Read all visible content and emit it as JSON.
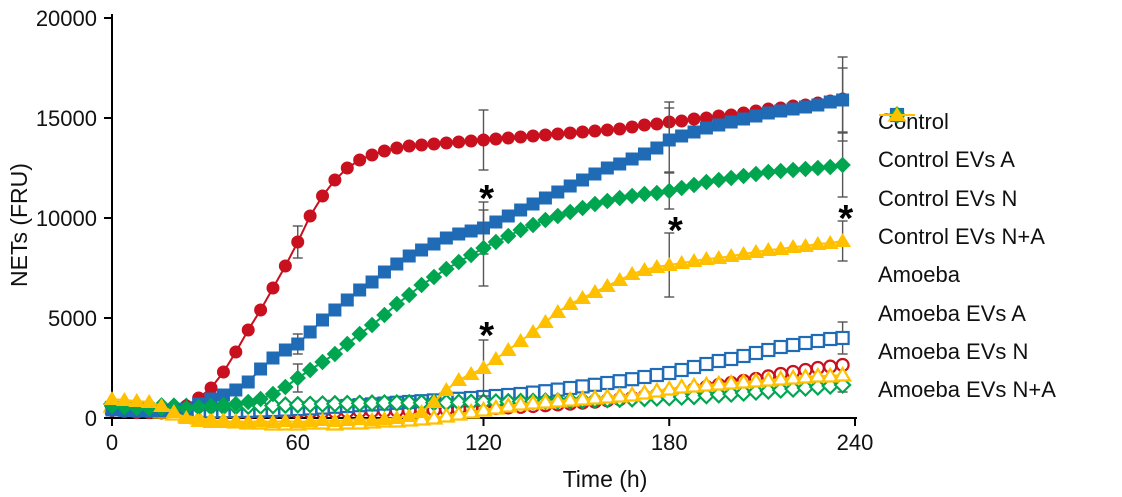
{
  "chart_data": {
    "type": "line",
    "title": "",
    "xlabel": "Time (h)",
    "ylabel": "NETs (FRU)",
    "xlim": [
      0,
      240
    ],
    "ylim": [
      0,
      20000
    ],
    "x_ticks": [
      0,
      60,
      120,
      180,
      240
    ],
    "y_ticks": [
      0,
      5000,
      10000,
      15000,
      20000
    ],
    "grid": false,
    "legend_position": "right",
    "annotation_symbol": "*",
    "x": [
      0,
      4,
      8,
      12,
      16,
      20,
      24,
      28,
      32,
      36,
      40,
      44,
      48,
      52,
      56,
      60,
      64,
      68,
      72,
      76,
      80,
      84,
      88,
      92,
      96,
      100,
      104,
      108,
      112,
      116,
      120,
      124,
      128,
      132,
      136,
      140,
      144,
      148,
      152,
      156,
      160,
      164,
      168,
      172,
      176,
      180,
      184,
      188,
      192,
      196,
      200,
      204,
      208,
      212,
      216,
      220,
      224,
      228,
      232,
      236
    ],
    "series": [
      {
        "name": "Control",
        "marker": "circle",
        "fill": "open",
        "color": "#C8101E",
        "values": [
          400,
          350,
          300,
          300,
          280,
          260,
          250,
          240,
          230,
          230,
          240,
          250,
          260,
          270,
          280,
          290,
          300,
          310,
          320,
          330,
          340,
          350,
          360,
          370,
          380,
          390,
          400,
          420,
          440,
          460,
          480,
          500,
          530,
          560,
          600,
          640,
          680,
          720,
          770,
          820,
          880,
          940,
          1010,
          1080,
          1160,
          1250,
          1340,
          1440,
          1550,
          1650,
          1750,
          1850,
          1950,
          2080,
          2200,
          2300,
          2400,
          2500,
          2570,
          2650
        ],
        "error_bars": []
      },
      {
        "name": "Control EVs A",
        "marker": "square",
        "fill": "open",
        "color": "#1F6BB5",
        "values": [
          500,
          450,
          400,
          380,
          360,
          350,
          340,
          330,
          330,
          340,
          350,
          360,
          380,
          400,
          420,
          450,
          480,
          520,
          560,
          600,
          640,
          680,
          720,
          760,
          800,
          840,
          880,
          920,
          960,
          1000,
          1050,
          1100,
          1150,
          1200,
          1270,
          1340,
          1420,
          1500,
          1580,
          1660,
          1750,
          1840,
          1940,
          2050,
          2150,
          2250,
          2400,
          2550,
          2700,
          2850,
          2950,
          3100,
          3250,
          3400,
          3550,
          3650,
          3750,
          3850,
          3950,
          4000
        ],
        "error_bars": [
          {
            "t": 236,
            "err": 800
          }
        ]
      },
      {
        "name": "Control EVs N",
        "marker": "diamond",
        "fill": "open",
        "color": "#00A550",
        "values": [
          700,
          650,
          620,
          600,
          590,
          580,
          570,
          560,
          560,
          570,
          580,
          590,
          600,
          620,
          640,
          660,
          680,
          700,
          710,
          720,
          730,
          740,
          750,
          750,
          760,
          760,
          770,
          770,
          780,
          780,
          790,
          800,
          810,
          820,
          830,
          840,
          850,
          860,
          880,
          900,
          920,
          940,
          960,
          980,
          1000,
          1020,
          1050,
          1080,
          1120,
          1160,
          1200,
          1250,
          1300,
          1350,
          1400,
          1450,
          1500,
          1550,
          1600,
          1650
        ],
        "error_bars": [
          {
            "t": 236,
            "err": 350
          }
        ]
      },
      {
        "name": "Control EVs N+A",
        "marker": "triangle",
        "fill": "open",
        "color": "#FFC000",
        "values": [
          600,
          550,
          500,
          400,
          300,
          200,
          100,
          0,
          -100,
          -150,
          -200,
          -250,
          -250,
          -300,
          -300,
          -300,
          -250,
          -250,
          -300,
          -250,
          -250,
          -200,
          -150,
          -150,
          -100,
          -50,
          0,
          100,
          200,
          300,
          400,
          500,
          600,
          700,
          750,
          800,
          850,
          900,
          950,
          1000,
          1050,
          1100,
          1150,
          1250,
          1350,
          1450,
          1550,
          1600,
          1650,
          1700,
          1750,
          1800,
          1850,
          1900,
          1950,
          2000,
          2050,
          2100,
          2100,
          2150
        ],
        "error_bars": []
      },
      {
        "name": "Amoeba",
        "marker": "circle",
        "fill": "solid",
        "color": "#C8101E",
        "values": [
          500,
          450,
          430,
          420,
          420,
          450,
          600,
          1000,
          1500,
          2300,
          3300,
          4400,
          5400,
          6500,
          7600,
          8800,
          10100,
          11100,
          11900,
          12500,
          12900,
          13150,
          13350,
          13500,
          13600,
          13650,
          13700,
          13750,
          13800,
          13850,
          13900,
          13950,
          14000,
          14050,
          14100,
          14150,
          14200,
          14250,
          14300,
          14350,
          14400,
          14450,
          14550,
          14650,
          14700,
          14800,
          14850,
          14950,
          15000,
          15100,
          15150,
          15250,
          15350,
          15450,
          15500,
          15600,
          15650,
          15750,
          15850,
          15950
        ],
        "error_bars": [
          {
            "t": 60,
            "err": 800
          },
          {
            "t": 120,
            "err": 1500
          },
          {
            "t": 180,
            "err": 1000
          },
          {
            "t": 236,
            "err": 2100
          }
        ]
      },
      {
        "name": "Amoeba EVs A",
        "marker": "square",
        "fill": "solid",
        "color": "#1F6BB5",
        "values": [
          400,
          380,
          360,
          350,
          350,
          380,
          450,
          700,
          950,
          1150,
          1400,
          1800,
          2450,
          3000,
          3400,
          3700,
          4300,
          4900,
          5400,
          5900,
          6400,
          6800,
          7300,
          7700,
          8100,
          8400,
          8700,
          9000,
          9200,
          9350,
          9500,
          9800,
          10100,
          10400,
          10700,
          11000,
          11300,
          11600,
          11900,
          12200,
          12500,
          12700,
          12950,
          13200,
          13500,
          13900,
          14100,
          14300,
          14500,
          14650,
          14800,
          14950,
          15100,
          15250,
          15350,
          15450,
          15550,
          15650,
          15800,
          15900
        ],
        "error_bars": [
          {
            "t": 60,
            "err": 500
          },
          {
            "t": 120,
            "err": 1300
          },
          {
            "t": 180,
            "err": 1600
          },
          {
            "t": 236,
            "err": 1600
          }
        ]
      },
      {
        "name": "Amoeba EVs N",
        "marker": "diamond",
        "fill": "solid",
        "color": "#00A550",
        "values": [
          600,
          550,
          500,
          480,
          470,
          480,
          500,
          550,
          600,
          650,
          700,
          800,
          950,
          1200,
          1550,
          2000,
          2400,
          2800,
          3200,
          3700,
          4200,
          4650,
          5150,
          5700,
          6150,
          6650,
          7050,
          7450,
          7800,
          8150,
          8500,
          8800,
          9100,
          9400,
          9650,
          9900,
          10100,
          10300,
          10500,
          10700,
          10850,
          11000,
          11100,
          11200,
          11250,
          11350,
          11500,
          11650,
          11800,
          11900,
          12000,
          12100,
          12200,
          12300,
          12350,
          12400,
          12450,
          12500,
          12550,
          12650
        ],
        "error_bars": [
          {
            "t": 60,
            "err": 700
          },
          {
            "t": 120,
            "err": 1900
          },
          {
            "t": 180,
            "err": 900
          },
          {
            "t": 236,
            "err": 1600
          }
        ]
      },
      {
        "name": "Amoeba EVs N+A",
        "marker": "triangle",
        "fill": "solid",
        "color": "#FFC000",
        "values": [
          950,
          900,
          850,
          800,
          600,
          300,
          0,
          -150,
          -200,
          -200,
          -150,
          -200,
          -150,
          -200,
          -150,
          -200,
          -150,
          -100,
          -150,
          -100,
          -50,
          -100,
          -50,
          0,
          100,
          300,
          800,
          1400,
          1900,
          2200,
          2500,
          2950,
          3400,
          3850,
          4300,
          4800,
          5300,
          5700,
          6000,
          6300,
          6600,
          6900,
          7200,
          7400,
          7550,
          7650,
          7750,
          7850,
          7950,
          8000,
          8100,
          8200,
          8300,
          8400,
          8450,
          8550,
          8600,
          8700,
          8750,
          8850
        ],
        "error_bars": [
          {
            "t": 120,
            "err": 1400
          },
          {
            "t": 180,
            "err": 1600
          },
          {
            "t": 236,
            "err": 1000
          }
        ]
      }
    ],
    "annotations": [
      {
        "label": "*",
        "t": 121,
        "y": 11400
      },
      {
        "label": "*",
        "t": 121,
        "y": 4550
      },
      {
        "label": "*",
        "t": 182,
        "y": 9800
      },
      {
        "label": "*",
        "t": 237,
        "y": 10400
      }
    ],
    "colors": {
      "axis": "#000000",
      "text": "#111111",
      "error_bar": "#555555",
      "annotation": "#000000"
    }
  }
}
